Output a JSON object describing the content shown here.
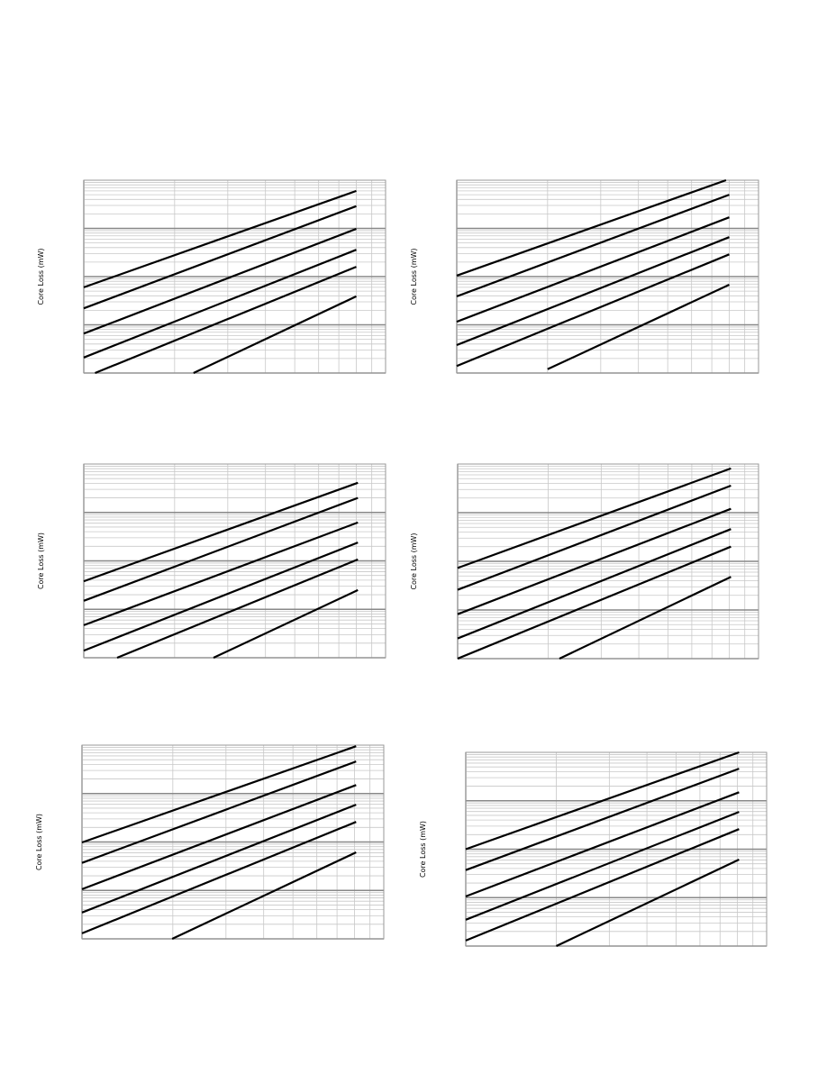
{
  "chart_data": [
    {
      "type": "line",
      "y_label": "Core Loss (mW)",
      "log_x": true,
      "log_y": true,
      "grid": true,
      "color": "#000000",
      "xlim": [
        1,
        10
      ],
      "ylim": [
        1,
        10000
      ],
      "series": [
        {
          "x": [
            1,
            8
          ],
          "values": [
            60,
            6000
          ]
        },
        {
          "x": [
            1,
            8
          ],
          "values": [
            22,
            2900
          ]
        },
        {
          "x": [
            1,
            8
          ],
          "values": [
            6.6,
            980
          ]
        },
        {
          "x": [
            1,
            8
          ],
          "values": [
            2.1,
            360
          ]
        },
        {
          "x": [
            1.09,
            8
          ],
          "values": [
            1,
            160
          ]
        },
        {
          "x": [
            2.31,
            8
          ],
          "values": [
            1,
            39
          ]
        }
      ]
    },
    {
      "type": "line",
      "y_label": "Core Loss (mW)",
      "log_x": true,
      "log_y": true,
      "grid": true,
      "color": "#000000",
      "xlim": [
        1,
        10
      ],
      "ylim": [
        1,
        10000
      ],
      "series": [
        {
          "x": [
            1,
            7.8
          ],
          "values": [
            105,
            10000
          ]
        },
        {
          "x": [
            1,
            8
          ],
          "values": [
            39,
            5000
          ]
        },
        {
          "x": [
            1,
            8
          ],
          "values": [
            11.6,
            1700
          ]
        },
        {
          "x": [
            1,
            8
          ],
          "values": [
            3.8,
            660
          ]
        },
        {
          "x": [
            1,
            8
          ],
          "values": [
            1.4,
            290
          ]
        },
        {
          "x": [
            2,
            8
          ],
          "values": [
            1.2,
            68
          ]
        }
      ]
    },
    {
      "type": "line",
      "y_label": "Core Loss (mW)",
      "log_x": true,
      "log_y": true,
      "grid": true,
      "color": "#000000",
      "xlim": [
        1,
        10
      ],
      "ylim": [
        1,
        10000
      ],
      "series": [
        {
          "x": [
            1,
            8.1
          ],
          "values": [
            38,
            4100
          ]
        },
        {
          "x": [
            1,
            8.1
          ],
          "values": [
            15,
            2000
          ]
        },
        {
          "x": [
            1,
            8.1
          ],
          "values": [
            4.7,
            620
          ]
        },
        {
          "x": [
            1,
            8.1
          ],
          "values": [
            1.4,
            240
          ]
        },
        {
          "x": [
            1.29,
            8.1
          ],
          "values": [
            1,
            107
          ]
        },
        {
          "x": [
            2.69,
            8.1
          ],
          "values": [
            1,
            25
          ]
        }
      ]
    },
    {
      "type": "line",
      "y_label": "Core Loss (mW)",
      "log_x": true,
      "log_y": true,
      "grid": true,
      "color": "#000000",
      "xlim": [
        1,
        10
      ],
      "ylim": [
        1,
        10000
      ],
      "series": [
        {
          "x": [
            1,
            8.1
          ],
          "values": [
            73,
            8100
          ]
        },
        {
          "x": [
            1,
            8.1
          ],
          "values": [
            26,
            3600
          ]
        },
        {
          "x": [
            1,
            8.1
          ],
          "values": [
            8.2,
            1200
          ]
        },
        {
          "x": [
            1,
            8.1
          ],
          "values": [
            2.6,
            460
          ]
        },
        {
          "x": [
            1,
            8.1
          ],
          "values": [
            1,
            200
          ]
        },
        {
          "x": [
            2.18,
            8.1
          ],
          "values": [
            1,
            48
          ]
        }
      ]
    },
    {
      "type": "line",
      "y_label": "Core Loss (mW)",
      "log_x": true,
      "log_y": true,
      "grid": true,
      "color": "#000000",
      "xlim": [
        1,
        10
      ],
      "ylim": [
        1,
        10000
      ],
      "series": [
        {
          "x": [
            1,
            8.1
          ],
          "values": [
            98,
            9500
          ]
        },
        {
          "x": [
            1,
            8.1
          ],
          "values": [
            37,
            4600
          ]
        },
        {
          "x": [
            1,
            8.1
          ],
          "values": [
            10.6,
            1500
          ]
        },
        {
          "x": [
            1,
            8.1
          ],
          "values": [
            3.5,
            590
          ]
        },
        {
          "x": [
            1,
            8.1
          ],
          "values": [
            1.3,
            260
          ]
        },
        {
          "x": [
            1.99,
            8.1
          ],
          "values": [
            1,
            61
          ]
        }
      ]
    },
    {
      "type": "line",
      "y_label": "Core Loss (mW)",
      "log_x": true,
      "log_y": true,
      "grid": true,
      "color": "#000000",
      "xlim": [
        1,
        10
      ],
      "ylim": [
        1,
        10000
      ],
      "series": [
        {
          "x": [
            1,
            8.1
          ],
          "values": [
            100,
            10000
          ]
        },
        {
          "x": [
            1,
            8.1
          ],
          "values": [
            37,
            4600
          ]
        },
        {
          "x": [
            1,
            8.1
          ],
          "values": [
            10.6,
            1500
          ]
        },
        {
          "x": [
            1,
            8.1
          ],
          "values": [
            3.5,
            590
          ]
        },
        {
          "x": [
            1,
            8.1
          ],
          "values": [
            1.3,
            260
          ]
        },
        {
          "x": [
            2,
            8.1
          ],
          "values": [
            1,
            61
          ]
        }
      ]
    }
  ]
}
